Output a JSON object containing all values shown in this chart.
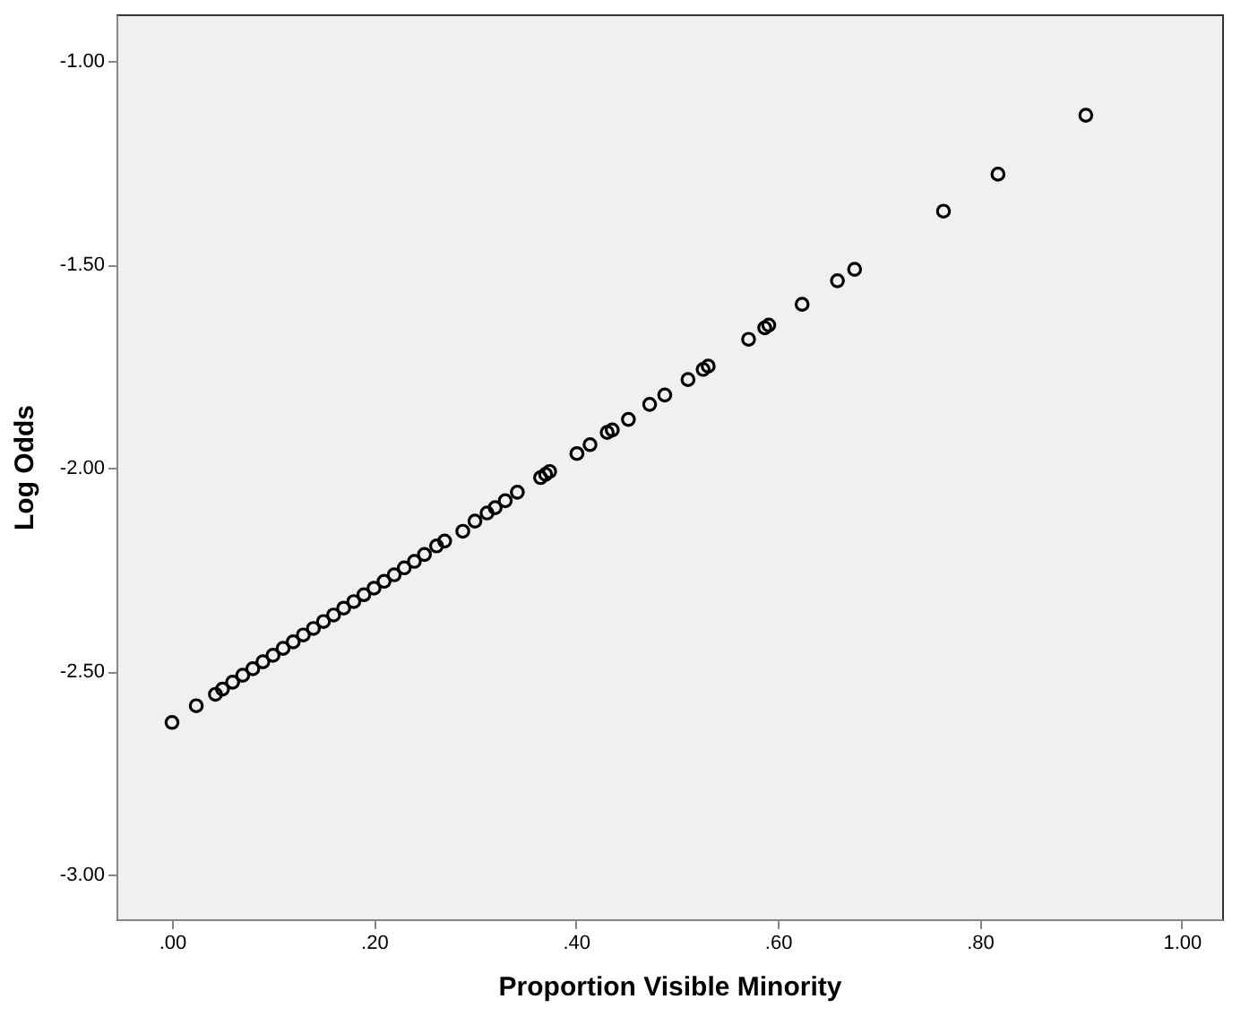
{
  "chart_data": {
    "type": "scatter",
    "xlabel": "Proportion Visible Minority",
    "ylabel": "Log Odds",
    "x": [
      0.0,
      0.024,
      0.043,
      0.05,
      0.06,
      0.07,
      0.08,
      0.09,
      0.1,
      0.11,
      0.12,
      0.13,
      0.14,
      0.15,
      0.16,
      0.17,
      0.18,
      0.19,
      0.2,
      0.21,
      0.22,
      0.23,
      0.24,
      0.25,
      0.262,
      0.27,
      0.288,
      0.3,
      0.312,
      0.32,
      0.33,
      0.342,
      0.365,
      0.37,
      0.374,
      0.401,
      0.414,
      0.431,
      0.436,
      0.452,
      0.473,
      0.488,
      0.511,
      0.526,
      0.531,
      0.571,
      0.587,
      0.591,
      0.624,
      0.659,
      0.676,
      0.764,
      0.818,
      0.905
    ],
    "series": [
      {
        "color": "#000000",
        "values": [
          -2.626,
          -2.585,
          -2.557,
          -2.544,
          -2.527,
          -2.51,
          -2.494,
          -2.477,
          -2.461,
          -2.444,
          -2.428,
          -2.411,
          -2.395,
          -2.378,
          -2.362,
          -2.345,
          -2.329,
          -2.312,
          -2.296,
          -2.279,
          -2.263,
          -2.246,
          -2.23,
          -2.213,
          -2.192,
          -2.18,
          -2.156,
          -2.131,
          -2.111,
          -2.098,
          -2.081,
          -2.06,
          -2.024,
          -2.016,
          -2.009,
          -1.965,
          -1.943,
          -1.913,
          -1.907,
          -1.881,
          -1.844,
          -1.821,
          -1.783,
          -1.758,
          -1.75,
          -1.684,
          -1.656,
          -1.649,
          -1.598,
          -1.54,
          -1.512,
          -1.369,
          -1.278,
          -1.133
        ]
      }
    ],
    "xlim": [
      -0.055,
      1.04
    ],
    "ylim": [
      -3.11,
      -0.885
    ],
    "xticks": [
      {
        "value": 0,
        "label": ".00"
      },
      {
        "value": 0.2,
        "label": ".20"
      },
      {
        "value": 0.4,
        "label": ".40"
      },
      {
        "value": 0.6,
        "label": ".60"
      },
      {
        "value": 0.8,
        "label": ".80"
      },
      {
        "value": 1,
        "label": "1.00"
      }
    ],
    "yticks": [
      {
        "value": -3,
        "label": "-3.00"
      },
      {
        "value": -2.5,
        "label": "-2.50"
      },
      {
        "value": -2,
        "label": "-2.00"
      },
      {
        "value": -1.5,
        "label": "-1.50"
      },
      {
        "value": -1,
        "label": "-1.00"
      }
    ],
    "marker": "circle",
    "grid": false,
    "legend": false
  }
}
